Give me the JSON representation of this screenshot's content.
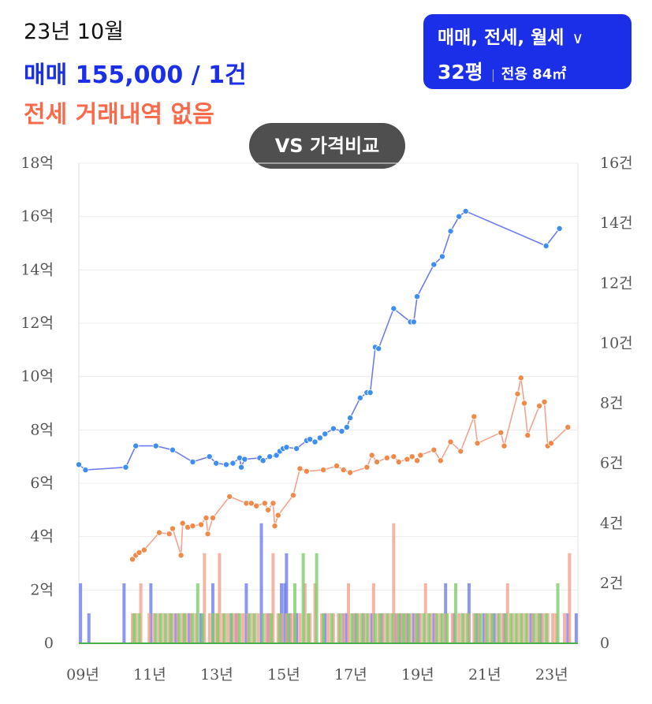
{
  "header": {
    "date": "23년 10월",
    "sale_summary": "매매 155,000 / 1건",
    "jeonse_summary": "전세 거래내역 없음"
  },
  "selector": {
    "types": "매매, 전세, 월세",
    "chevron_icon": "chevron-down-icon",
    "pyeong": "32평",
    "area": "전용 84㎡"
  },
  "compare_button": "VS 가격비교",
  "colors": {
    "sale": "#1c2fe8",
    "sale_line": "#6f7cf0",
    "sale_point": "#3d8ef0",
    "jeonse": "#fa6a4a",
    "jeonse_line": "#f3a38f",
    "jeonse_point": "#f08a4a",
    "monthly_rent": "#7ccd6a"
  },
  "chart_data": {
    "type": "line",
    "x_tick_labels": [
      "09년",
      "11년",
      "13년",
      "15년",
      "17년",
      "19년",
      "21년",
      "23년"
    ],
    "y_left": {
      "ticks": [
        0,
        2,
        4,
        6,
        8,
        10,
        12,
        14,
        16,
        18
      ],
      "tick_labels": [
        "0",
        "2억",
        "4억",
        "6억",
        "8억",
        "10억",
        "12억",
        "14억",
        "16억",
        "18억"
      ],
      "range": [
        0,
        18
      ]
    },
    "y_right": {
      "ticks": [
        0,
        2,
        4,
        6,
        8,
        10,
        12,
        14,
        16
      ],
      "tick_labels": [
        "0",
        "2건",
        "4건",
        "6건",
        "8건",
        "10건",
        "12건",
        "14건",
        "16건"
      ],
      "range": [
        0,
        16
      ]
    },
    "x_range": [
      2009.0,
      2023.9
    ],
    "grid": true,
    "series": [
      {
        "type": "line",
        "points": [
          [
            2009.0,
            6.7
          ],
          [
            2009.2,
            6.5
          ],
          [
            2010.4,
            6.6
          ],
          [
            2010.7,
            7.4
          ],
          [
            2011.3,
            7.4
          ],
          [
            2011.8,
            7.25
          ],
          [
            2012.4,
            6.8
          ],
          [
            2012.9,
            7.0
          ],
          [
            2013.1,
            6.75
          ],
          [
            2013.4,
            6.7
          ],
          [
            2013.6,
            6.75
          ],
          [
            2013.8,
            6.95
          ],
          [
            2013.85,
            6.6
          ],
          [
            2013.95,
            6.9
          ],
          [
            2014.4,
            6.95
          ],
          [
            2014.5,
            6.85
          ],
          [
            2014.7,
            7.0
          ],
          [
            2014.9,
            7.05
          ],
          [
            2015.0,
            7.2
          ],
          [
            2015.1,
            7.3
          ],
          [
            2015.2,
            7.35
          ],
          [
            2015.5,
            7.3
          ],
          [
            2015.8,
            7.6
          ],
          [
            2015.9,
            7.65
          ],
          [
            2016.05,
            7.55
          ],
          [
            2016.2,
            7.7
          ],
          [
            2016.35,
            7.85
          ],
          [
            2016.6,
            8.05
          ],
          [
            2016.85,
            7.95
          ],
          [
            2017.0,
            8.1
          ],
          [
            2017.1,
            8.45
          ],
          [
            2017.4,
            9.2
          ],
          [
            2017.6,
            9.4
          ],
          [
            2017.7,
            9.4
          ],
          [
            2017.85,
            11.1
          ],
          [
            2017.95,
            11.05
          ],
          [
            2018.4,
            12.55
          ],
          [
            2018.9,
            12.05
          ],
          [
            2019.0,
            12.05
          ],
          [
            2019.1,
            13.0
          ],
          [
            2019.6,
            14.2
          ],
          [
            2019.85,
            14.5
          ],
          [
            2020.1,
            15.45
          ],
          [
            2020.35,
            16.0
          ],
          [
            2020.55,
            16.2
          ],
          [
            2022.95,
            14.9
          ],
          [
            2023.35,
            15.55
          ]
        ]
      },
      {
        "type": "line",
        "points": [
          [
            2010.6,
            3.15
          ],
          [
            2010.7,
            3.3
          ],
          [
            2010.8,
            3.4
          ],
          [
            2010.95,
            3.5
          ],
          [
            2011.4,
            4.15
          ],
          [
            2011.7,
            4.1
          ],
          [
            2011.8,
            4.3
          ],
          [
            2012.05,
            3.3
          ],
          [
            2012.1,
            4.5
          ],
          [
            2012.25,
            4.35
          ],
          [
            2012.4,
            4.4
          ],
          [
            2012.65,
            4.45
          ],
          [
            2012.8,
            4.7
          ],
          [
            2012.85,
            4.1
          ],
          [
            2013.0,
            4.7
          ],
          [
            2013.5,
            5.5
          ],
          [
            2014.0,
            5.25
          ],
          [
            2014.15,
            5.25
          ],
          [
            2014.3,
            5.15
          ],
          [
            2014.55,
            5.25
          ],
          [
            2014.65,
            5.0
          ],
          [
            2014.8,
            5.25
          ],
          [
            2014.85,
            4.4
          ],
          [
            2014.95,
            4.8
          ],
          [
            2015.4,
            5.55
          ],
          [
            2015.6,
            6.55
          ],
          [
            2015.8,
            6.45
          ],
          [
            2016.3,
            6.5
          ],
          [
            2016.7,
            6.65
          ],
          [
            2016.9,
            6.5
          ],
          [
            2017.1,
            6.4
          ],
          [
            2017.6,
            6.6
          ],
          [
            2017.75,
            7.05
          ],
          [
            2017.9,
            6.8
          ],
          [
            2018.2,
            6.95
          ],
          [
            2018.4,
            7.0
          ],
          [
            2018.55,
            6.8
          ],
          [
            2018.8,
            6.9
          ],
          [
            2018.95,
            7.0
          ],
          [
            2019.1,
            6.85
          ],
          [
            2019.2,
            7.05
          ],
          [
            2019.6,
            7.25
          ],
          [
            2019.8,
            6.85
          ],
          [
            2020.1,
            7.55
          ],
          [
            2020.4,
            7.2
          ],
          [
            2020.8,
            8.5
          ],
          [
            2020.9,
            7.5
          ],
          [
            2021.6,
            7.9
          ],
          [
            2021.7,
            7.4
          ],
          [
            2022.1,
            9.35
          ],
          [
            2022.2,
            9.95
          ],
          [
            2022.3,
            9.0
          ],
          [
            2022.4,
            7.8
          ],
          [
            2022.75,
            8.9
          ],
          [
            2022.9,
            9.05
          ],
          [
            2023.0,
            7.4
          ],
          [
            2023.1,
            7.5
          ],
          [
            2023.6,
            8.1
          ]
        ]
      }
    ],
    "bars": [
      {
        "points": [
          [
            2009.05,
            2
          ],
          [
            2009.3,
            1
          ],
          [
            2010.35,
            2
          ],
          [
            2011.15,
            2
          ],
          [
            2011.9,
            1
          ],
          [
            2012.3,
            1
          ],
          [
            2012.65,
            1
          ],
          [
            2013.0,
            2
          ],
          [
            2013.55,
            1
          ],
          [
            2013.7,
            1
          ],
          [
            2014.0,
            2
          ],
          [
            2014.45,
            4
          ],
          [
            2014.65,
            1
          ],
          [
            2015.05,
            2
          ],
          [
            2015.15,
            2
          ],
          [
            2015.2,
            3
          ],
          [
            2015.3,
            1
          ],
          [
            2015.45,
            1
          ],
          [
            2015.5,
            1
          ],
          [
            2016.35,
            1
          ],
          [
            2016.9,
            1
          ],
          [
            2017.0,
            1
          ],
          [
            2017.25,
            1
          ],
          [
            2017.5,
            1
          ],
          [
            2017.75,
            1
          ],
          [
            2018.05,
            1
          ],
          [
            2018.45,
            1
          ],
          [
            2018.6,
            1
          ],
          [
            2018.8,
            1
          ],
          [
            2019.0,
            1
          ],
          [
            2019.15,
            1
          ],
          [
            2019.6,
            1
          ],
          [
            2019.95,
            2
          ],
          [
            2020.2,
            1
          ],
          [
            2020.65,
            2
          ],
          [
            2020.9,
            1
          ],
          [
            2021.1,
            1
          ],
          [
            2021.4,
            1
          ],
          [
            2021.7,
            1
          ],
          [
            2022.5,
            1
          ],
          [
            2022.8,
            1
          ],
          [
            2023.6,
            1
          ],
          [
            2023.85,
            1
          ]
        ]
      },
      {
        "points": [
          [
            2010.6,
            1
          ],
          [
            2010.7,
            1
          ],
          [
            2010.85,
            2
          ],
          [
            2011.1,
            1
          ],
          [
            2011.25,
            1
          ],
          [
            2011.4,
            1
          ],
          [
            2011.55,
            1
          ],
          [
            2011.7,
            1
          ],
          [
            2011.8,
            1
          ],
          [
            2011.95,
            1
          ],
          [
            2012.1,
            1
          ],
          [
            2012.2,
            1
          ],
          [
            2012.35,
            1
          ],
          [
            2012.5,
            1
          ],
          [
            2012.75,
            3
          ],
          [
            2012.9,
            1
          ],
          [
            2013.1,
            1
          ],
          [
            2013.2,
            3
          ],
          [
            2013.3,
            1
          ],
          [
            2013.45,
            1
          ],
          [
            2013.65,
            1
          ],
          [
            2013.75,
            1
          ],
          [
            2013.9,
            1
          ],
          [
            2014.05,
            1
          ],
          [
            2014.2,
            1
          ],
          [
            2014.35,
            1
          ],
          [
            2014.6,
            1
          ],
          [
            2014.7,
            1
          ],
          [
            2014.8,
            3
          ],
          [
            2014.95,
            1
          ],
          [
            2015.05,
            1
          ],
          [
            2015.2,
            1
          ],
          [
            2015.35,
            1
          ],
          [
            2015.45,
            1
          ],
          [
            2015.6,
            1
          ],
          [
            2015.75,
            2
          ],
          [
            2015.9,
            1
          ],
          [
            2016.05,
            2
          ],
          [
            2016.25,
            1
          ],
          [
            2016.45,
            1
          ],
          [
            2016.6,
            1
          ],
          [
            2016.75,
            1
          ],
          [
            2016.9,
            1
          ],
          [
            2017.05,
            2
          ],
          [
            2017.2,
            1
          ],
          [
            2017.35,
            1
          ],
          [
            2017.5,
            1
          ],
          [
            2017.65,
            1
          ],
          [
            2017.8,
            2
          ],
          [
            2017.95,
            1
          ],
          [
            2018.1,
            1
          ],
          [
            2018.25,
            1
          ],
          [
            2018.4,
            4
          ],
          [
            2018.5,
            1
          ],
          [
            2018.65,
            1
          ],
          [
            2018.75,
            1
          ],
          [
            2018.9,
            1
          ],
          [
            2019.05,
            1
          ],
          [
            2019.2,
            1
          ],
          [
            2019.35,
            2
          ],
          [
            2019.5,
            1
          ],
          [
            2019.65,
            1
          ],
          [
            2019.8,
            1
          ],
          [
            2019.95,
            1
          ],
          [
            2020.15,
            1
          ],
          [
            2020.35,
            1
          ],
          [
            2020.5,
            1
          ],
          [
            2020.65,
            1
          ],
          [
            2020.8,
            1
          ],
          [
            2020.95,
            1
          ],
          [
            2021.15,
            1
          ],
          [
            2021.3,
            1
          ],
          [
            2021.5,
            1
          ],
          [
            2021.65,
            1
          ],
          [
            2021.8,
            2
          ],
          [
            2021.95,
            1
          ],
          [
            2022.1,
            1
          ],
          [
            2022.25,
            1
          ],
          [
            2022.4,
            1
          ],
          [
            2022.55,
            1
          ],
          [
            2022.7,
            1
          ],
          [
            2022.85,
            1
          ],
          [
            2023.0,
            1
          ],
          [
            2023.15,
            1
          ],
          [
            2023.25,
            1
          ],
          [
            2023.5,
            1
          ],
          [
            2023.65,
            3
          ]
        ]
      },
      {
        "points": [
          [
            2010.65,
            1
          ],
          [
            2010.8,
            1
          ],
          [
            2011.3,
            1
          ],
          [
            2011.45,
            1
          ],
          [
            2011.6,
            1
          ],
          [
            2011.75,
            1
          ],
          [
            2012.0,
            1
          ],
          [
            2012.15,
            1
          ],
          [
            2012.4,
            1
          ],
          [
            2012.55,
            2
          ],
          [
            2012.7,
            1
          ],
          [
            2013.0,
            1
          ],
          [
            2013.15,
            1
          ],
          [
            2013.35,
            1
          ],
          [
            2013.55,
            1
          ],
          [
            2013.8,
            1
          ],
          [
            2014.1,
            1
          ],
          [
            2014.25,
            1
          ],
          [
            2014.5,
            1
          ],
          [
            2014.75,
            1
          ],
          [
            2015.0,
            1
          ],
          [
            2015.25,
            1
          ],
          [
            2015.45,
            2
          ],
          [
            2015.7,
            3
          ],
          [
            2015.85,
            1
          ],
          [
            2016.1,
            3
          ],
          [
            2016.3,
            1
          ],
          [
            2016.55,
            1
          ],
          [
            2016.8,
            1
          ],
          [
            2017.15,
            1
          ],
          [
            2017.3,
            1
          ],
          [
            2017.45,
            1
          ],
          [
            2017.6,
            1
          ],
          [
            2017.85,
            1
          ],
          [
            2018.0,
            1
          ],
          [
            2018.2,
            1
          ],
          [
            2018.35,
            1
          ],
          [
            2018.55,
            1
          ],
          [
            2018.7,
            1
          ],
          [
            2018.85,
            1
          ],
          [
            2019.1,
            1
          ],
          [
            2019.3,
            1
          ],
          [
            2019.45,
            1
          ],
          [
            2019.7,
            1
          ],
          [
            2019.85,
            1
          ],
          [
            2020.0,
            1
          ],
          [
            2020.25,
            2
          ],
          [
            2020.45,
            1
          ],
          [
            2020.6,
            1
          ],
          [
            2020.85,
            1
          ],
          [
            2021.0,
            1
          ],
          [
            2021.2,
            1
          ],
          [
            2021.35,
            1
          ],
          [
            2021.55,
            1
          ],
          [
            2021.75,
            1
          ],
          [
            2021.9,
            1
          ],
          [
            2022.05,
            1
          ],
          [
            2022.2,
            1
          ],
          [
            2022.35,
            1
          ],
          [
            2022.6,
            1
          ],
          [
            2022.75,
            1
          ],
          [
            2022.95,
            1
          ],
          [
            2023.3,
            2
          ]
        ]
      }
    ]
  }
}
